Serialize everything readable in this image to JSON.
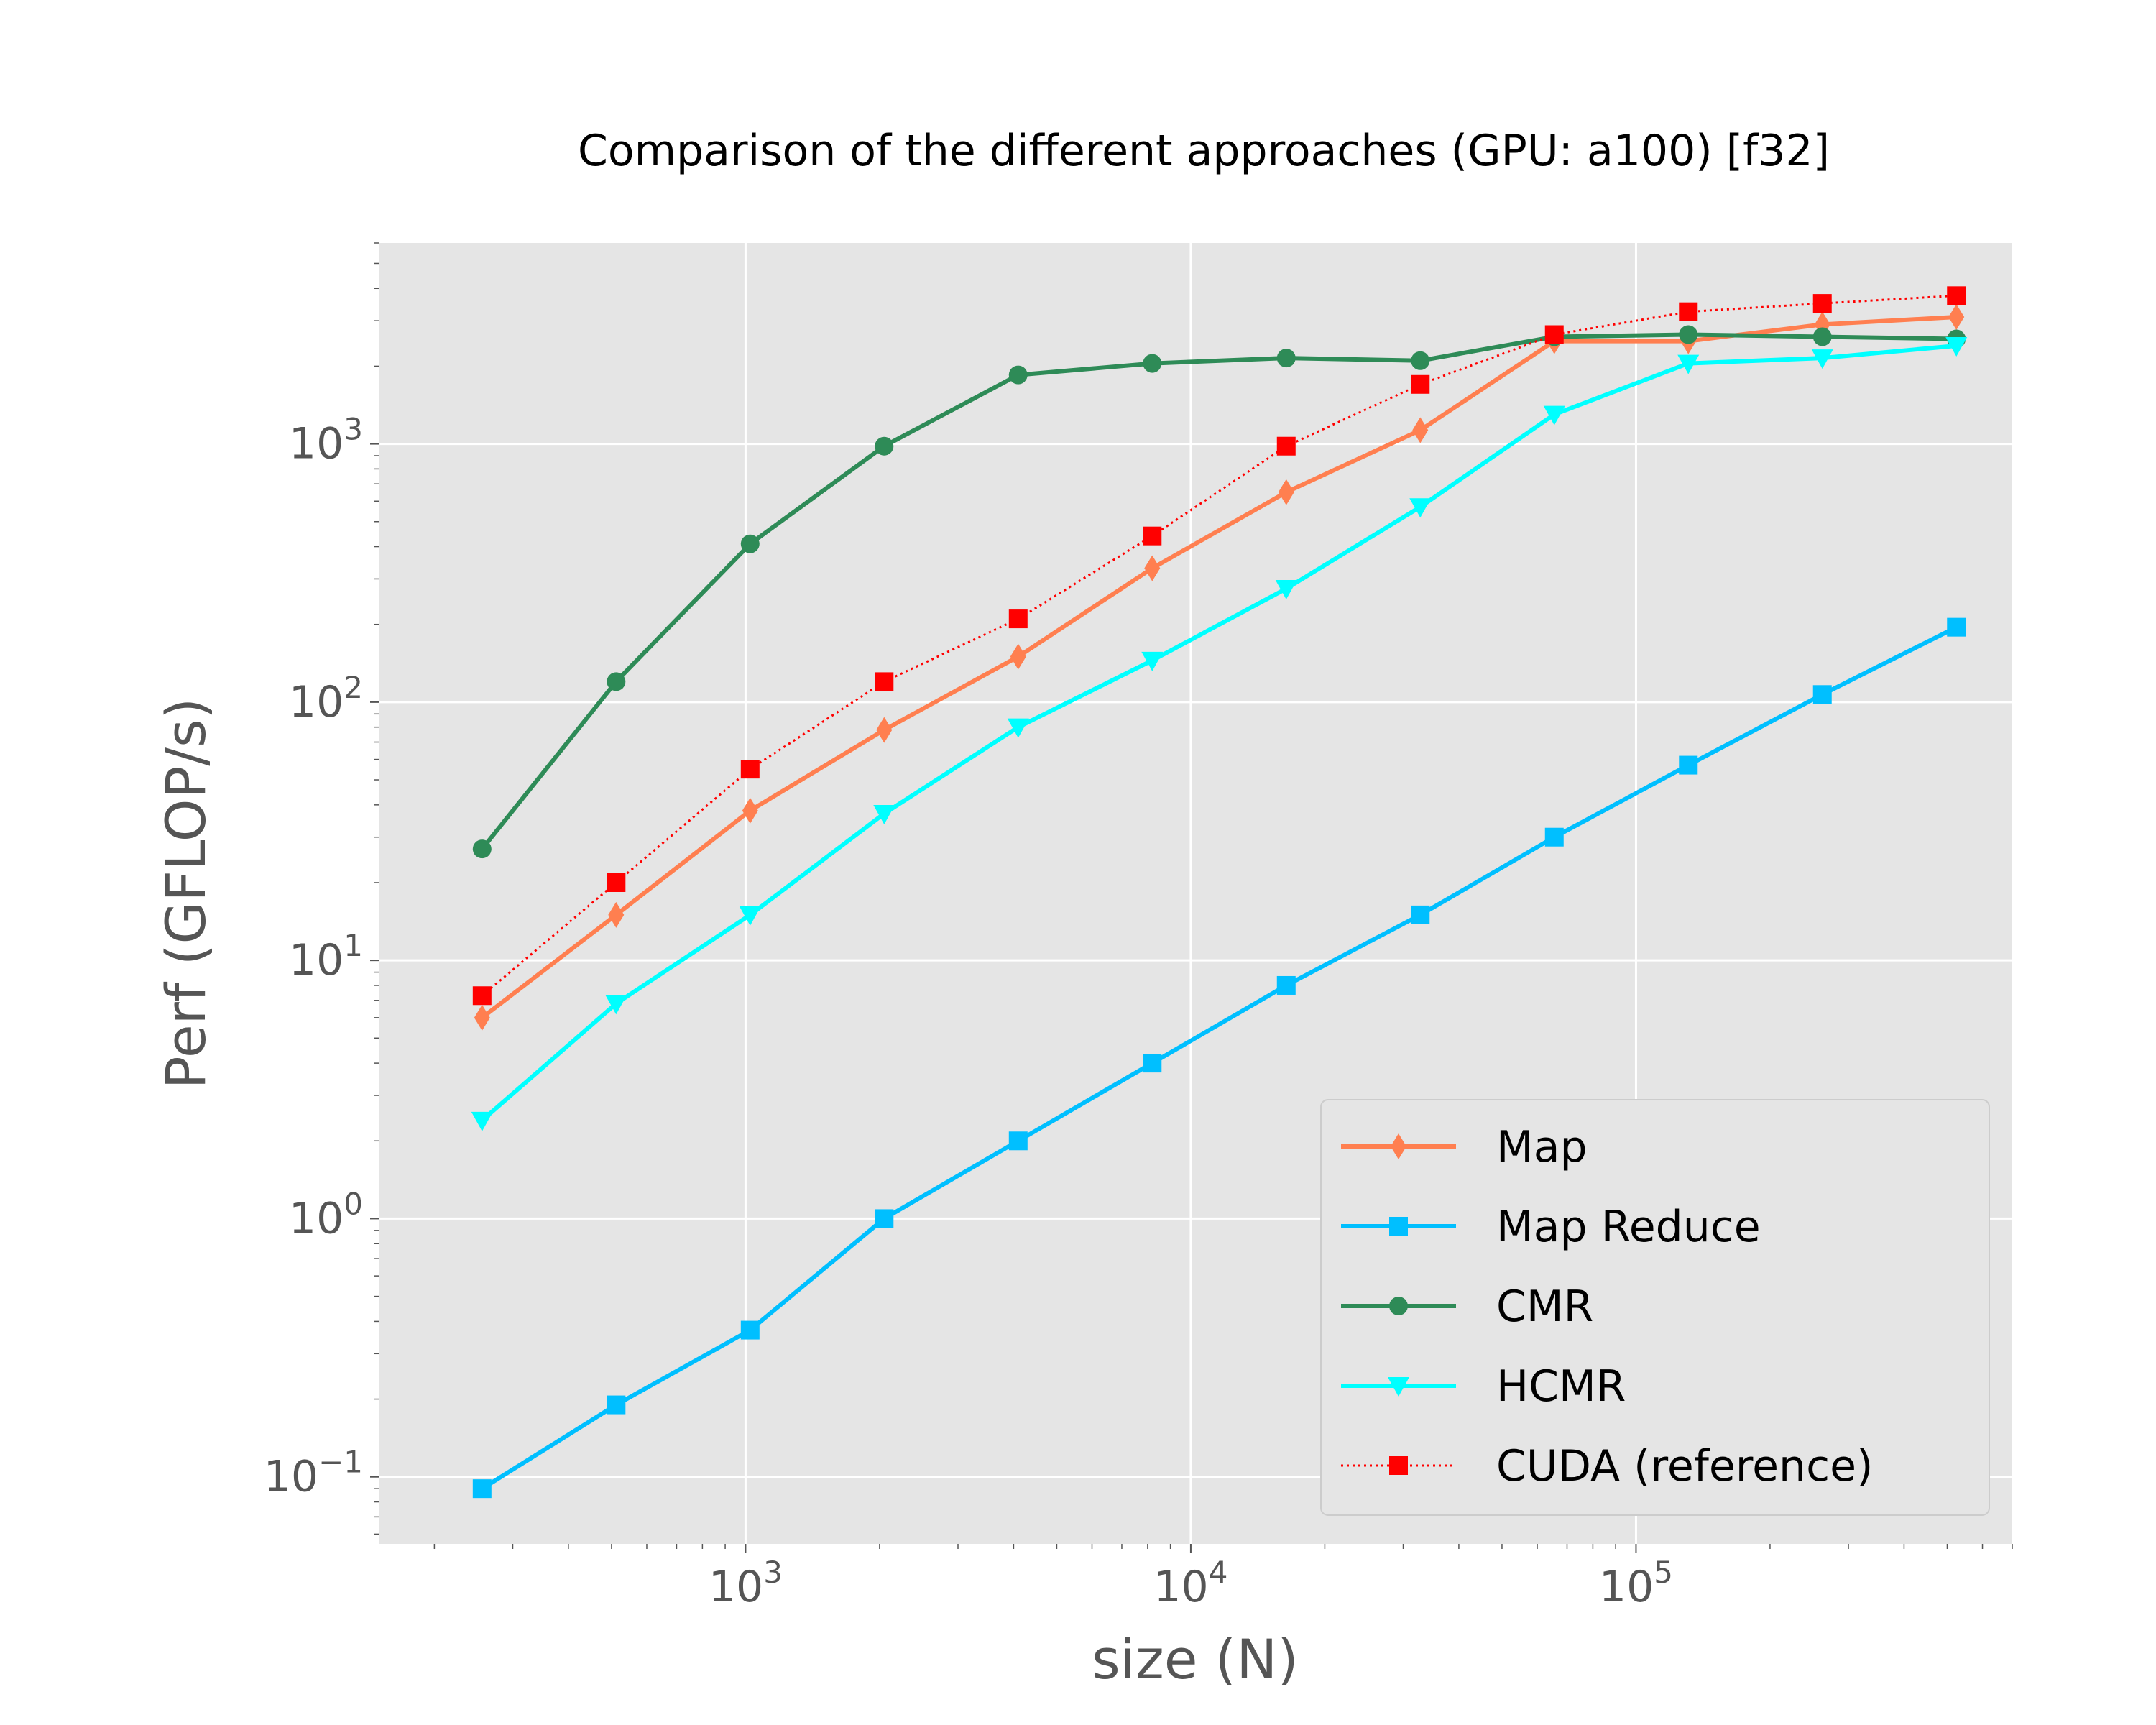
{
  "chart_data": {
    "type": "line",
    "title": "Comparison of the different approaches (GPU: a100) [f32]",
    "xlabel": "size (N)",
    "ylabel": "Perf (GFLOP/s)",
    "xscale": "log",
    "yscale": "log",
    "xlim": [
      150,
      700000
    ],
    "ylim": [
      0.055,
      6000
    ],
    "grid": true,
    "legend_position": "lower right",
    "x_ticks": [
      {
        "value": 1000,
        "base": "10",
        "exp": "3"
      },
      {
        "value": 10000,
        "base": "10",
        "exp": "4"
      },
      {
        "value": 100000,
        "base": "10",
        "exp": "5"
      }
    ],
    "y_ticks": [
      {
        "value": 0.1,
        "base": "10",
        "exp": "−1"
      },
      {
        "value": 1,
        "base": "10",
        "exp": "0"
      },
      {
        "value": 10,
        "base": "10",
        "exp": "1"
      },
      {
        "value": 100,
        "base": "10",
        "exp": "2"
      },
      {
        "value": 1000,
        "base": "10",
        "exp": "3"
      }
    ],
    "x": [
      256,
      512,
      1024,
      2048,
      4096,
      8192,
      16384,
      32768,
      65536,
      131072,
      262144,
      524288
    ],
    "series": [
      {
        "name": "Map",
        "color": "#ff7f50",
        "marker": "diamond",
        "line_style": "solid",
        "values": [
          6,
          15,
          38,
          78,
          150,
          330,
          650,
          1130,
          2500,
          2500,
          2900,
          3100
        ]
      },
      {
        "name": "Map Reduce",
        "color": "#00bfff",
        "marker": "square",
        "line_style": "solid",
        "values": [
          0.09,
          0.19,
          0.37,
          1.0,
          2.0,
          4.0,
          8.0,
          15,
          30,
          57,
          107,
          195
        ]
      },
      {
        "name": "CMR",
        "color": "#2e8b57",
        "marker": "circle",
        "line_style": "solid",
        "values": [
          27,
          120,
          410,
          980,
          1850,
          2050,
          2150,
          2100,
          2600,
          2650,
          2600,
          2550
        ]
      },
      {
        "name": "HCMR",
        "color": "#00ffff",
        "marker": "triangle-down",
        "line_style": "solid",
        "values": [
          2.4,
          6.8,
          15,
          37,
          80,
          145,
          275,
          570,
          1300,
          2050,
          2150,
          2400
        ]
      },
      {
        "name": "CUDA (reference)",
        "color": "#ff0000",
        "marker": "square",
        "line_style": "dotted",
        "values": [
          7.3,
          20,
          55,
          120,
          210,
          440,
          980,
          1700,
          2650,
          3250,
          3500,
          3750
        ]
      }
    ]
  }
}
